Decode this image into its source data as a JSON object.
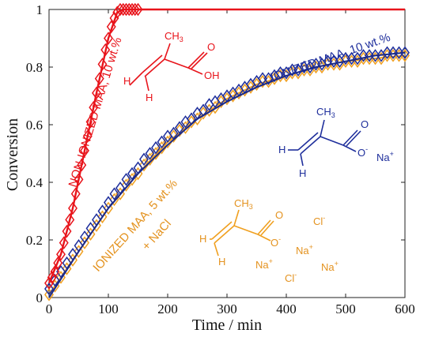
{
  "chart_data": {
    "type": "scatter",
    "xlabel": "Time / min",
    "ylabel": "Conversion",
    "xlim": [
      0,
      600
    ],
    "ylim": [
      0,
      1
    ],
    "xticks": [
      "0",
      "100",
      "200",
      "300",
      "400",
      "500",
      "600"
    ],
    "yticks": [
      "0",
      "0.2",
      "0.4",
      "0.6",
      "0.8",
      "1"
    ],
    "grid": false,
    "series": [
      {
        "name": "NON-IONIZED MAA, 10 wt.%",
        "color": "#e8141b",
        "marker": "diamond",
        "points": [
          [
            0,
            0.05
          ],
          [
            5,
            0.07
          ],
          [
            10,
            0.09
          ],
          [
            15,
            0.12
          ],
          [
            20,
            0.15
          ],
          [
            25,
            0.19
          ],
          [
            30,
            0.23
          ],
          [
            35,
            0.27
          ],
          [
            40,
            0.31
          ],
          [
            45,
            0.36
          ],
          [
            50,
            0.41
          ],
          [
            55,
            0.46
          ],
          [
            60,
            0.51
          ],
          [
            65,
            0.56
          ],
          [
            70,
            0.61
          ],
          [
            75,
            0.66
          ],
          [
            80,
            0.71
          ],
          [
            85,
            0.76
          ],
          [
            90,
            0.81
          ],
          [
            95,
            0.86
          ],
          [
            100,
            0.9
          ],
          [
            105,
            0.94
          ],
          [
            110,
            0.97
          ],
          [
            115,
            0.99
          ],
          [
            120,
            1.0
          ],
          [
            125,
            1.0
          ],
          [
            130,
            1.0
          ],
          [
            135,
            1.0
          ],
          [
            140,
            1.0
          ],
          [
            145,
            1.0
          ],
          [
            150,
            1.0
          ]
        ],
        "fit": [
          [
            0,
            0.05
          ],
          [
            20,
            0.15
          ],
          [
            40,
            0.31
          ],
          [
            60,
            0.51
          ],
          [
            80,
            0.71
          ],
          [
            100,
            0.9
          ],
          [
            115,
            0.99
          ],
          [
            125,
            1.0
          ],
          [
            600,
            1.0
          ]
        ]
      },
      {
        "name": "IONIZED MAA, 10 wt.%",
        "color": "#1f2f9c",
        "marker": "diamond",
        "points": [
          [
            0,
            0.03
          ],
          [
            10,
            0.06
          ],
          [
            20,
            0.09
          ],
          [
            30,
            0.12
          ],
          [
            40,
            0.15
          ],
          [
            50,
            0.18
          ],
          [
            60,
            0.21
          ],
          [
            70,
            0.24
          ],
          [
            80,
            0.27
          ],
          [
            90,
            0.3
          ],
          [
            100,
            0.33
          ],
          [
            110,
            0.36
          ],
          [
            120,
            0.38
          ],
          [
            130,
            0.41
          ],
          [
            140,
            0.43
          ],
          [
            150,
            0.45
          ],
          [
            160,
            0.48
          ],
          [
            170,
            0.5
          ],
          [
            180,
            0.52
          ],
          [
            190,
            0.54
          ],
          [
            200,
            0.56
          ],
          [
            210,
            0.57
          ],
          [
            220,
            0.59
          ],
          [
            230,
            0.61
          ],
          [
            240,
            0.62
          ],
          [
            250,
            0.64
          ],
          [
            260,
            0.65
          ],
          [
            270,
            0.67
          ],
          [
            280,
            0.68
          ],
          [
            290,
            0.69
          ],
          [
            300,
            0.7
          ],
          [
            310,
            0.71
          ],
          [
            320,
            0.72
          ],
          [
            330,
            0.73
          ],
          [
            340,
            0.74
          ],
          [
            350,
            0.75
          ],
          [
            360,
            0.76
          ],
          [
            370,
            0.76
          ],
          [
            380,
            0.77
          ],
          [
            390,
            0.78
          ],
          [
            400,
            0.78
          ],
          [
            410,
            0.79
          ],
          [
            420,
            0.79
          ],
          [
            430,
            0.8
          ],
          [
            440,
            0.8
          ],
          [
            450,
            0.81
          ],
          [
            460,
            0.81
          ],
          [
            470,
            0.82
          ],
          [
            480,
            0.82
          ],
          [
            490,
            0.82
          ],
          [
            500,
            0.83
          ],
          [
            510,
            0.83
          ],
          [
            520,
            0.83
          ],
          [
            530,
            0.84
          ],
          [
            540,
            0.84
          ],
          [
            550,
            0.84
          ],
          [
            560,
            0.84
          ],
          [
            570,
            0.85
          ],
          [
            580,
            0.85
          ],
          [
            590,
            0.85
          ],
          [
            600,
            0.85
          ]
        ],
        "fit": [
          [
            0,
            0.0
          ],
          [
            50,
            0.16
          ],
          [
            100,
            0.31
          ],
          [
            150,
            0.43
          ],
          [
            200,
            0.53
          ],
          [
            250,
            0.62
          ],
          [
            300,
            0.68
          ],
          [
            350,
            0.73
          ],
          [
            400,
            0.77
          ],
          [
            450,
            0.8
          ],
          [
            500,
            0.82
          ],
          [
            550,
            0.84
          ],
          [
            600,
            0.85
          ]
        ]
      },
      {
        "name": "IONIZED MAA, 5 wt.% + NaCl",
        "color": "#f0a020",
        "marker": "diamond",
        "points": [
          [
            0,
            0.01
          ],
          [
            10,
            0.04
          ],
          [
            20,
            0.07
          ],
          [
            30,
            0.1
          ],
          [
            40,
            0.13
          ],
          [
            50,
            0.16
          ],
          [
            60,
            0.19
          ],
          [
            70,
            0.22
          ],
          [
            80,
            0.25
          ],
          [
            90,
            0.28
          ],
          [
            100,
            0.31
          ],
          [
            110,
            0.34
          ],
          [
            120,
            0.36
          ],
          [
            130,
            0.39
          ],
          [
            140,
            0.41
          ],
          [
            150,
            0.43
          ],
          [
            160,
            0.46
          ],
          [
            170,
            0.48
          ],
          [
            180,
            0.5
          ],
          [
            190,
            0.52
          ],
          [
            200,
            0.54
          ],
          [
            210,
            0.56
          ],
          [
            220,
            0.58
          ],
          [
            230,
            0.59
          ],
          [
            240,
            0.61
          ],
          [
            250,
            0.62
          ],
          [
            260,
            0.64
          ],
          [
            270,
            0.65
          ],
          [
            280,
            0.66
          ],
          [
            290,
            0.68
          ],
          [
            300,
            0.69
          ],
          [
            310,
            0.7
          ],
          [
            320,
            0.71
          ],
          [
            330,
            0.72
          ],
          [
            340,
            0.73
          ],
          [
            350,
            0.74
          ],
          [
            360,
            0.75
          ],
          [
            370,
            0.75
          ],
          [
            380,
            0.76
          ],
          [
            390,
            0.77
          ],
          [
            400,
            0.77
          ],
          [
            410,
            0.78
          ],
          [
            420,
            0.78
          ],
          [
            430,
            0.79
          ],
          [
            440,
            0.79
          ],
          [
            450,
            0.8
          ],
          [
            460,
            0.8
          ],
          [
            470,
            0.81
          ],
          [
            480,
            0.81
          ],
          [
            490,
            0.81
          ],
          [
            500,
            0.82
          ],
          [
            510,
            0.82
          ],
          [
            520,
            0.82
          ],
          [
            530,
            0.83
          ],
          [
            540,
            0.83
          ],
          [
            550,
            0.83
          ],
          [
            560,
            0.83
          ],
          [
            570,
            0.84
          ],
          [
            580,
            0.84
          ],
          [
            590,
            0.84
          ],
          [
            600,
            0.84
          ]
        ],
        "fit": [
          [
            0,
            0.01
          ],
          [
            50,
            0.16
          ],
          [
            100,
            0.31
          ],
          [
            150,
            0.43
          ],
          [
            200,
            0.54
          ],
          [
            250,
            0.62
          ],
          [
            300,
            0.69
          ],
          [
            350,
            0.74
          ],
          [
            400,
            0.77
          ],
          [
            450,
            0.8
          ],
          [
            500,
            0.82
          ],
          [
            550,
            0.83
          ],
          [
            600,
            0.84
          ]
        ]
      }
    ]
  },
  "annotations": {
    "non_ionized_label": "NON-IONIZED MAA, 10 wt.%",
    "ionized_label": "IONIZED MAA, 10 wt.%",
    "nacl_label_line1": "IONIZED MAA, 5 wt.%",
    "nacl_label_line2": "+ NaCl"
  },
  "molecules": {
    "red": {
      "ch3": "CH",
      "ch3_sub": "3",
      "h_left": "H",
      "h_bottom": "H",
      "oh": "OH",
      "o": "O",
      "color": "#e8141b"
    },
    "blue": {
      "ch3": "CH",
      "ch3_sub": "3",
      "h_left": "H",
      "h_bottom": "H",
      "o_top": "O",
      "o_minus": "O",
      "minus": "-",
      "na": "Na",
      "plus": "+",
      "color": "#1f2f9c"
    },
    "orange": {
      "ch3": "CH",
      "ch3_sub": "3",
      "h_left": "H",
      "h_bottom": "H",
      "o_top": "O",
      "o_minus": "O",
      "minus": "-",
      "cl1": "Cl",
      "cl2": "Cl",
      "na1": "Na",
      "na2": "Na",
      "na3": "Na",
      "plus": "+",
      "color": "#f0a020"
    }
  }
}
